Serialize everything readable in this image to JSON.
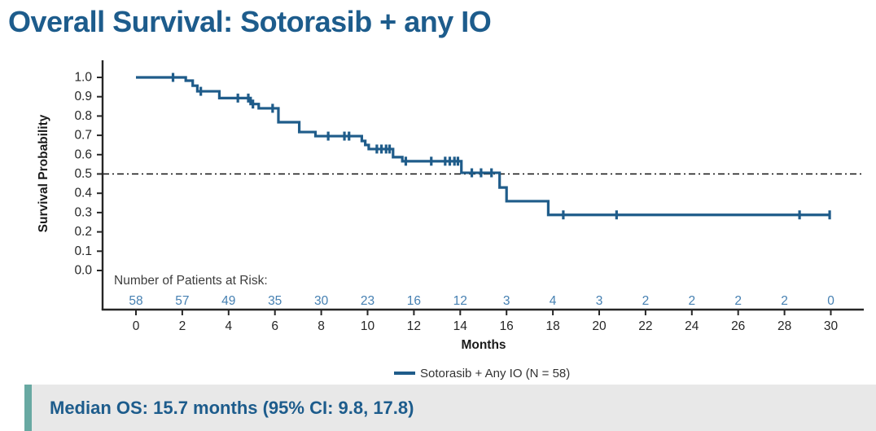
{
  "page": {
    "title": "Overall Survival: Sotorasib + any IO"
  },
  "colors": {
    "title_text": "#1d5c8c",
    "curve": "#1f5c8a",
    "risk_numbers": "#4680b2",
    "axis": "#262626",
    "median_line": "#111111",
    "banner_bg": "#e8e8e8",
    "banner_accent": "#68a9a2",
    "banner_text": "#1d5c8c"
  },
  "chart_data": {
    "type": "line",
    "subtype": "kaplan-meier-step",
    "xlabel": "Months",
    "ylabel": "Survival Probability",
    "xlim": [
      0,
      30
    ],
    "ylim": [
      0.0,
      1.0
    ],
    "x_ticks": [
      0,
      2,
      4,
      6,
      8,
      10,
      12,
      14,
      16,
      18,
      20,
      22,
      24,
      26,
      28,
      30
    ],
    "y_ticks": [
      0.0,
      0.1,
      0.2,
      0.3,
      0.4,
      0.5,
      0.6,
      0.7,
      0.8,
      0.9,
      1.0
    ],
    "grid": false,
    "median_reference_line": 0.5,
    "legend_position": "bottom-center",
    "series": [
      {
        "name": "Sotorasib + Any IO (N = 58)",
        "n": 58,
        "steps": [
          [
            0.0,
            1.0
          ],
          [
            2.15,
            0.983
          ],
          [
            2.45,
            0.957
          ],
          [
            2.65,
            0.928
          ],
          [
            3.6,
            0.893
          ],
          [
            4.95,
            0.862
          ],
          [
            5.3,
            0.84
          ],
          [
            6.15,
            0.768
          ],
          [
            7.05,
            0.717
          ],
          [
            7.75,
            0.696
          ],
          [
            9.75,
            0.671
          ],
          [
            9.9,
            0.65
          ],
          [
            10.05,
            0.629
          ],
          [
            11.1,
            0.587
          ],
          [
            11.5,
            0.566
          ],
          [
            14.05,
            0.506
          ],
          [
            15.7,
            0.43
          ],
          [
            16.0,
            0.359
          ],
          [
            17.8,
            0.288
          ]
        ],
        "end_time": 30.0,
        "censors": [
          [
            1.6,
            1.0
          ],
          [
            2.8,
            0.928
          ],
          [
            4.4,
            0.893
          ],
          [
            4.85,
            0.893
          ],
          [
            5.05,
            0.862
          ],
          [
            5.9,
            0.84
          ],
          [
            8.3,
            0.696
          ],
          [
            9.0,
            0.696
          ],
          [
            9.2,
            0.696
          ],
          [
            10.4,
            0.629
          ],
          [
            10.6,
            0.629
          ],
          [
            10.8,
            0.629
          ],
          [
            10.95,
            0.629
          ],
          [
            11.65,
            0.566
          ],
          [
            12.75,
            0.566
          ],
          [
            13.35,
            0.566
          ],
          [
            13.55,
            0.566
          ],
          [
            13.75,
            0.566
          ],
          [
            13.9,
            0.566
          ],
          [
            14.5,
            0.506
          ],
          [
            14.9,
            0.506
          ],
          [
            15.35,
            0.506
          ],
          [
            18.45,
            0.288
          ],
          [
            20.75,
            0.288
          ],
          [
            28.65,
            0.288
          ],
          [
            29.95,
            0.288
          ]
        ]
      }
    ],
    "at_risk": {
      "header": "Number of Patients at Risk:",
      "times": [
        0,
        2,
        4,
        6,
        8,
        10,
        12,
        14,
        16,
        18,
        20,
        22,
        24,
        26,
        28,
        30
      ],
      "counts": [
        58,
        57,
        49,
        35,
        30,
        23,
        16,
        12,
        3,
        4,
        3,
        2,
        2,
        2,
        2,
        0
      ]
    }
  },
  "legend": {
    "label": "Sotorasib + Any IO (N = 58)"
  },
  "banner": {
    "text": "Median OS: 15.7 months (95% CI: 9.8, 17.8)"
  }
}
